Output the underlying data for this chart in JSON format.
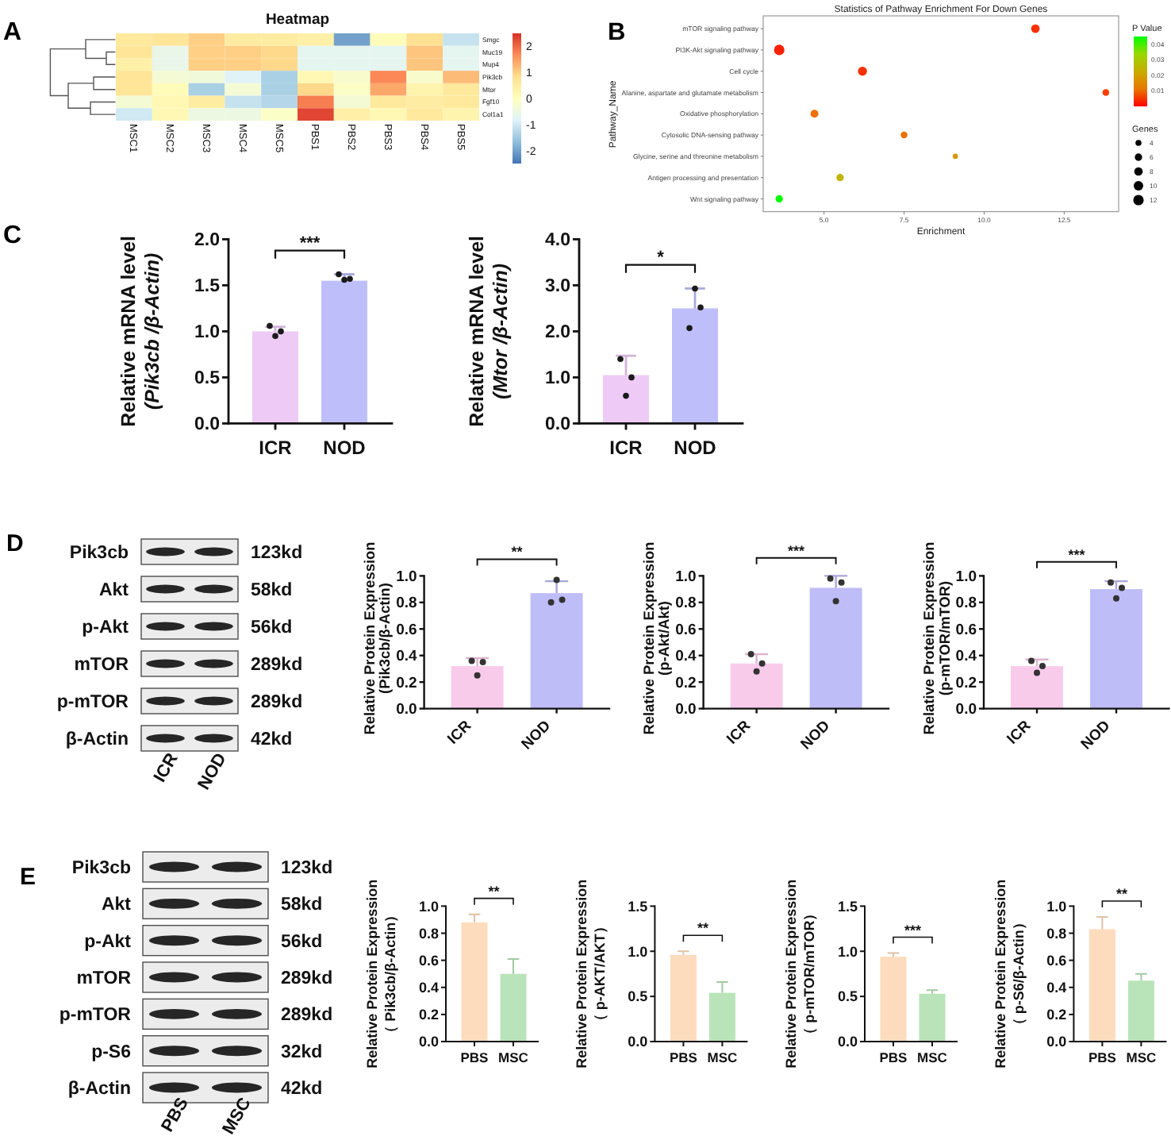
{
  "chart_data": [
    {
      "type": "heatmap",
      "title": "Heatmap",
      "annotations": [
        "A"
      ],
      "categories": [
        "MSC1",
        "MSC2",
        "MSC3",
        "MSC4",
        "MSC5",
        "PBS1",
        "PBS2",
        "PBS3",
        "PBS4",
        "PBS5"
      ],
      "y_categories": [
        "Smgc",
        "Muc19",
        "Mup4",
        "Pik3cb",
        "Mtor",
        "Fgf10",
        "Col1a1"
      ],
      "cells": [
        [
          0.6,
          0.7,
          1.0,
          0.5,
          0.5,
          0.4,
          -2.0,
          0.1,
          0.8,
          -1.1
        ],
        [
          0.7,
          -0.6,
          1.0,
          1.0,
          0.9,
          -0.7,
          -0.7,
          -0.7,
          1.1,
          -0.7
        ],
        [
          0.4,
          -0.6,
          1.0,
          1.0,
          0.9,
          -0.7,
          -0.7,
          -0.7,
          1.1,
          -0.7
        ],
        [
          0.7,
          -0.3,
          -0.4,
          -0.8,
          -1.4,
          0.2,
          -0.2,
          1.7,
          -0.2,
          1.2
        ],
        [
          0.7,
          0.1,
          -1.4,
          -0.3,
          -1.4,
          0.9,
          -0.1,
          1.4,
          0.3,
          0.6
        ],
        [
          -0.3,
          0.2,
          0.5,
          -1.1,
          -1.3,
          1.8,
          -0.3,
          0.6,
          0.5,
          0.6
        ],
        [
          -1.0,
          0.2,
          -0.5,
          -0.5,
          -0.1,
          2.3,
          0.4,
          0.2,
          0.6,
          0.3
        ]
      ],
      "clim": [
        -2.5,
        2.5
      ],
      "cticks": [
        -2,
        -1,
        0,
        1,
        2
      ]
    },
    {
      "type": "bubble",
      "orientation": "horizontal",
      "annotations": [
        "B"
      ],
      "title": "Statistics of Pathway Enrichment For Down Genes",
      "xlabel": "Enrichment",
      "ylabel": "Pathway_Name",
      "categories": [
        "mTOR signaling pathway",
        "PI3K-Akt signaling pathway",
        "Cell cycle",
        "Alanine, aspartate and glutamate metabolism",
        "Oxidative phosphorylation",
        "Cytosolic DNA-sensing pathway",
        "Glycine, serine and threonine metabolism",
        "Antigen processing and presentation",
        "Wnt signaling pathway"
      ],
      "values": [
        11.6,
        3.6,
        6.2,
        13.8,
        4.7,
        7.5,
        9.1,
        5.5,
        3.6
      ],
      "sizes": [
        8,
        12,
        9,
        5,
        7,
        5,
        3,
        6,
        6
      ],
      "cvalues": [
        0.002,
        0.001,
        0.002,
        0.003,
        0.01,
        0.01,
        0.018,
        0.025,
        0.045
      ],
      "xlim": [
        3.1,
        14.2
      ],
      "xticks": [
        {
          "value": 5,
          "label": "5.0"
        },
        {
          "value": 7.5,
          "label": "7.5"
        },
        {
          "value": 10,
          "label": "10.0"
        },
        {
          "value": 12.5,
          "label": "12.5"
        }
      ],
      "clabel": "P Value",
      "clim": [
        0,
        0.045
      ],
      "cticks": [
        0.01,
        0.02,
        0.03,
        0.04
      ],
      "legend_title": "Genes",
      "size_legend": [
        4,
        6,
        8,
        10,
        12
      ]
    },
    {
      "type": "bar",
      "annotations": [
        "C",
        "***"
      ],
      "ylabel": "Relative mRNA level\n(Pik3cb /β-Actin)",
      "categories": [
        "ICR",
        "NOD"
      ],
      "series": [
        {
          "type": "bar",
          "colors": [
            "#eecbf6",
            "#bebffa"
          ],
          "values": [
            1.0,
            1.55
          ],
          "errors": [
            [
              1.0,
              1.05
            ],
            [
              1.55,
              1.62
            ]
          ]
        },
        {
          "type": "scatter",
          "marker": "circle",
          "color": "#1a1a1a",
          "x": [
            "ICR",
            "ICR",
            "ICR",
            "NOD",
            "NOD",
            "NOD"
          ],
          "values": [
            1.06,
            1.0,
            0.95,
            1.62,
            1.57,
            1.56
          ]
        }
      ],
      "ylim": [
        0,
        2
      ],
      "yticks": [
        {
          "value": 0,
          "label": "0.0"
        },
        {
          "value": 0.5,
          "label": "0.5"
        },
        {
          "value": 1,
          "label": "1.0"
        },
        {
          "value": 1.5,
          "label": "1.5"
        },
        {
          "value": 2,
          "label": "2.0"
        }
      ]
    },
    {
      "type": "bar",
      "annotations": [
        "*"
      ],
      "ylabel": "Relative mRNA level\n(Mtor /β-Actin)",
      "categories": [
        "ICR",
        "NOD"
      ],
      "series": [
        {
          "type": "bar",
          "colors": [
            "#eecbf6",
            "#bebffa"
          ],
          "values": [
            1.05,
            2.5
          ],
          "errors": [
            [
              1.05,
              1.47
            ],
            [
              2.5,
              2.93
            ]
          ]
        },
        {
          "type": "scatter",
          "marker": "circle",
          "color": "#1a1a1a",
          "x": [
            "ICR",
            "ICR",
            "ICR",
            "NOD",
            "NOD",
            "NOD"
          ],
          "values": [
            1.4,
            1.0,
            0.6,
            2.07,
            2.52,
            2.93
          ]
        }
      ],
      "ylim": [
        0,
        4
      ],
      "yticks": [
        {
          "value": 0,
          "label": "0.0"
        },
        {
          "value": 1,
          "label": "1.0"
        },
        {
          "value": 2,
          "label": "2.0"
        },
        {
          "value": 3,
          "label": "3.0"
        },
        {
          "value": 4,
          "label": "4.0"
        }
      ]
    },
    {
      "type": "other",
      "annotations": [
        "D"
      ],
      "categories": [
        "ICR",
        "NOD"
      ],
      "y_categories": [
        "Pik3cb",
        "Akt",
        "p-Akt",
        "mTOR",
        "p-mTOR",
        "β-Actin"
      ],
      "y2_categories": [
        "123kd",
        "58kd",
        "56kd",
        "289kd",
        "289kd",
        "42kd"
      ]
    },
    {
      "type": "bar",
      "annotations": [
        "**"
      ],
      "ylabel": "Relative Protein Expression\n(Pik3cb/β-Actin)",
      "categories": [
        "ICR",
        "NOD"
      ],
      "series": [
        {
          "type": "bar",
          "colors": [
            "#f9cbeb",
            "#bfbdf8"
          ],
          "values": [
            0.32,
            0.87
          ],
          "errors": [
            [
              0.32,
              0.38
            ],
            [
              0.87,
              0.96
            ]
          ]
        },
        {
          "type": "scatter",
          "marker": "circle",
          "color": "#333333",
          "x": [
            "ICR",
            "ICR",
            "ICR",
            "NOD",
            "NOD",
            "NOD"
          ],
          "values": [
            0.36,
            0.35,
            0.25,
            0.8,
            0.82,
            0.97
          ]
        }
      ],
      "ylim": [
        0,
        1
      ],
      "yticks": [
        {
          "value": 0,
          "label": "0.0"
        },
        {
          "value": 0.2,
          "label": "0.2"
        },
        {
          "value": 0.4,
          "label": "0.4"
        },
        {
          "value": 0.6,
          "label": "0.6"
        },
        {
          "value": 0.8,
          "label": "0.8"
        },
        {
          "value": 1,
          "label": "1.0"
        }
      ]
    },
    {
      "type": "bar",
      "annotations": [
        "***"
      ],
      "ylabel": "Relative Protein Expression\n(p-Akt/Akt)",
      "categories": [
        "ICR",
        "NOD"
      ],
      "series": [
        {
          "type": "bar",
          "colors": [
            "#f9cbeb",
            "#bfbdf8"
          ],
          "values": [
            0.34,
            0.91
          ],
          "errors": [
            [
              0.34,
              0.41
            ],
            [
              0.91,
              1.0
            ]
          ]
        },
        {
          "type": "scatter",
          "marker": "circle",
          "color": "#333333",
          "x": [
            "ICR",
            "ICR",
            "ICR",
            "NOD",
            "NOD",
            "NOD"
          ],
          "values": [
            0.41,
            0.34,
            0.28,
            0.98,
            0.95,
            0.81
          ]
        }
      ],
      "ylim": [
        0,
        1
      ],
      "yticks": [
        {
          "value": 0,
          "label": "0.0"
        },
        {
          "value": 0.2,
          "label": "0.2"
        },
        {
          "value": 0.4,
          "label": "0.4"
        },
        {
          "value": 0.6,
          "label": "0.6"
        },
        {
          "value": 0.8,
          "label": "0.8"
        },
        {
          "value": 1,
          "label": "1.0"
        }
      ]
    },
    {
      "type": "bar",
      "annotations": [
        "***"
      ],
      "ylabel": "Relative Protein Expression\n(p-mTOR/mTOR)",
      "categories": [
        "ICR",
        "NOD"
      ],
      "series": [
        {
          "type": "bar",
          "colors": [
            "#f9cbeb",
            "#bfbdf8"
          ],
          "values": [
            0.32,
            0.9
          ],
          "errors": [
            [
              0.32,
              0.37
            ],
            [
              0.9,
              0.96
            ]
          ]
        },
        {
          "type": "scatter",
          "marker": "circle",
          "color": "#333333",
          "x": [
            "ICR",
            "ICR",
            "ICR",
            "NOD",
            "NOD",
            "NOD"
          ],
          "values": [
            0.36,
            0.32,
            0.27,
            0.95,
            0.91,
            0.83
          ]
        }
      ],
      "ylim": [
        0,
        1
      ],
      "yticks": [
        {
          "value": 0,
          "label": "0.0"
        },
        {
          "value": 0.2,
          "label": "0.2"
        },
        {
          "value": 0.4,
          "label": "0.4"
        },
        {
          "value": 0.6,
          "label": "0.6"
        },
        {
          "value": 0.8,
          "label": "0.8"
        },
        {
          "value": 1,
          "label": "1.0"
        }
      ]
    },
    {
      "type": "other",
      "annotations": [
        "E"
      ],
      "categories": [
        "PBS",
        "MSC"
      ],
      "y_categories": [
        "Pik3cb",
        "Akt",
        "p-Akt",
        "mTOR",
        "p-mTOR",
        "p-S6",
        "β-Actin"
      ],
      "y2_categories": [
        "123kd",
        "58kd",
        "56kd",
        "289kd",
        "289kd",
        "32kd",
        "42kd"
      ]
    },
    {
      "type": "bar",
      "annotations": [
        "**"
      ],
      "ylabel": "Relative Protein Expression\n（ Pik3cb/β-Actin）",
      "categories": [
        "PBS",
        "MSC"
      ],
      "series": [
        {
          "type": "bar",
          "colors": [
            "#fddcbd",
            "#b9e4b9"
          ],
          "values": [
            0.88,
            0.5
          ],
          "errors": [
            [
              0.88,
              0.94
            ],
            [
              0.5,
              0.61
            ]
          ]
        }
      ],
      "ylim": [
        0,
        1
      ],
      "yticks": [
        {
          "value": 0,
          "label": "0.0"
        },
        {
          "value": 0.2,
          "label": "0.2"
        },
        {
          "value": 0.4,
          "label": "0.4"
        },
        {
          "value": 0.6,
          "label": "0.6"
        },
        {
          "value": 0.8,
          "label": "0.8"
        },
        {
          "value": 1,
          "label": "1.0"
        }
      ]
    },
    {
      "type": "bar",
      "annotations": [
        "**"
      ],
      "ylabel": "Relative Protein Expression\n（ p-AKT/AKT）",
      "categories": [
        "PBS",
        "MSC"
      ],
      "series": [
        {
          "type": "bar",
          "colors": [
            "#fddcbd",
            "#b9e4b9"
          ],
          "values": [
            0.96,
            0.54
          ],
          "errors": [
            [
              0.96,
              1.0
            ],
            [
              0.54,
              0.66
            ]
          ]
        }
      ],
      "ylim": [
        0,
        1.5
      ],
      "yticks": [
        {
          "value": 0,
          "label": "0.0"
        },
        {
          "value": 0.5,
          "label": "0.5"
        },
        {
          "value": 1,
          "label": "1.0"
        },
        {
          "value": 1.5,
          "label": "1.5"
        }
      ]
    },
    {
      "type": "bar",
      "annotations": [
        "***"
      ],
      "ylabel": "Relative Protein Expression\n（ p-mTOR/mTOR）",
      "categories": [
        "PBS",
        "MSC"
      ],
      "series": [
        {
          "type": "bar",
          "colors": [
            "#fddcbd",
            "#b9e4b9"
          ],
          "values": [
            0.94,
            0.53
          ],
          "errors": [
            [
              0.94,
              0.98
            ],
            [
              0.53,
              0.57
            ]
          ]
        }
      ],
      "ylim": [
        0,
        1.5
      ],
      "yticks": [
        {
          "value": 0,
          "label": "0.0"
        },
        {
          "value": 0.5,
          "label": "0.5"
        },
        {
          "value": 1,
          "label": "1.0"
        },
        {
          "value": 1.5,
          "label": "1.5"
        }
      ]
    },
    {
      "type": "bar",
      "annotations": [
        "**"
      ],
      "ylabel": "Relative Protein Expression\n（ p-S6/β-Actin）",
      "categories": [
        "PBS",
        "MSC"
      ],
      "series": [
        {
          "type": "bar",
          "colors": [
            "#fddcbd",
            "#b9e4b9"
          ],
          "values": [
            0.83,
            0.45
          ],
          "errors": [
            [
              0.83,
              0.92
            ],
            [
              0.45,
              0.5
            ]
          ]
        }
      ],
      "ylim": [
        0,
        1
      ],
      "yticks": [
        {
          "value": 0,
          "label": "0.0"
        },
        {
          "value": 0.2,
          "label": "0.2"
        },
        {
          "value": 0.4,
          "label": "0.4"
        },
        {
          "value": 0.6,
          "label": "0.6"
        },
        {
          "value": 0.8,
          "label": "0.8"
        },
        {
          "value": 1,
          "label": "1.0"
        }
      ]
    }
  ]
}
